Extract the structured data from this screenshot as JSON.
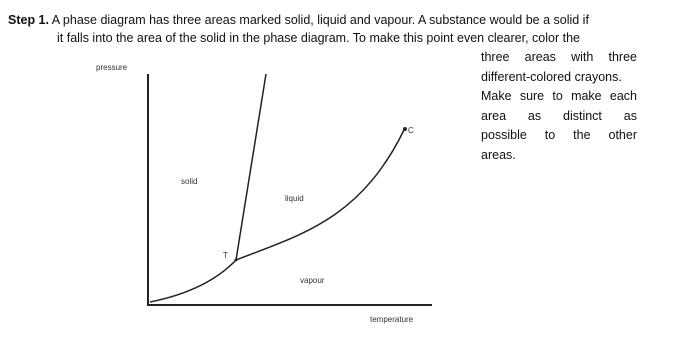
{
  "step": "Step 1.",
  "lines": [
    "A phase diagram has three areas marked solid, liquid and vapour. A substance would be a solid if",
    "it falls into the area of the solid in the phase diagram. To make this point even clearer, color the"
  ],
  "column": [
    "three areas with three",
    "different-colored crayons.",
    "Make sure to make each",
    "area as distinct as",
    "possible to the other",
    "areas."
  ],
  "labels": {
    "pressure": "pressure",
    "solid": "solid",
    "liquid": "liquid",
    "vapour": "vapour",
    "temperature": "temperature",
    "triple": "T",
    "critical": "C"
  }
}
